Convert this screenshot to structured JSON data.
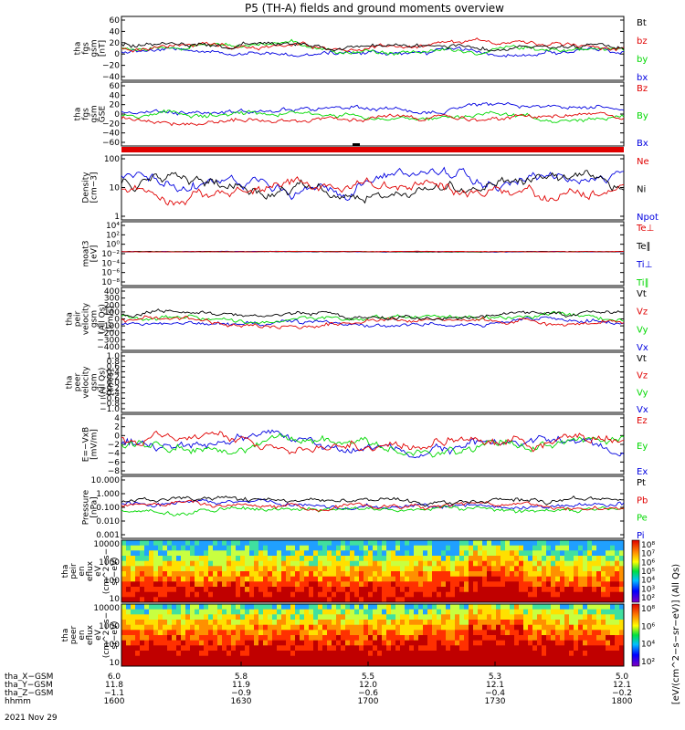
{
  "title": "P5 (TH-A) fields and ground moments overview",
  "colors": {
    "black": "#000000",
    "red": "#e00000",
    "green": "#00d800",
    "blue": "#0000e0",
    "purple": "#9b009b"
  },
  "panels": [
    {
      "id": "fgs-gsm",
      "ylabel": [
        "tha",
        "fgs",
        "gsm",
        "[nT]"
      ],
      "legend": [
        {
          "text": "Bt",
          "color": "#000000"
        },
        {
          "text": "bz",
          "color": "#e00000"
        },
        {
          "text": "by",
          "color": "#00d800"
        },
        {
          "text": "bx",
          "color": "#0000e0"
        }
      ],
      "ytick_labels": [
        "60",
        "40",
        "20",
        "0",
        "−20",
        "−40"
      ]
    },
    {
      "id": "fgs-gse",
      "ylabel": [
        "tha",
        "fgs",
        "gsm",
        "GSE"
      ],
      "legend": [
        {
          "text": "Bz",
          "color": "#e00000"
        },
        {
          "text": "By",
          "color": "#00d800"
        },
        {
          "text": "Bx",
          "color": "#0000e0"
        }
      ],
      "ytick_labels": [
        "60",
        "40",
        "20",
        "0",
        "−20",
        "−40",
        "−60"
      ]
    },
    {
      "id": "density",
      "ylabel": [
        "Density",
        "[cm−3]"
      ],
      "legend": [
        {
          "text": "Ne",
          "color": "#e00000"
        },
        {
          "text": "Ni",
          "color": "#000000"
        },
        {
          "text": "Npot",
          "color": "#0000e0"
        }
      ],
      "ytick_labels": [
        "100",
        "10",
        "1"
      ]
    },
    {
      "id": "temperature",
      "ylabel": [
        "moat3",
        "[eV]"
      ],
      "legend": [
        {
          "text": "Te⊥",
          "color": "#e00000"
        },
        {
          "text": "Te∥",
          "color": "#000000"
        },
        {
          "text": "Ti⊥",
          "color": "#0000e0"
        },
        {
          "text": "Ti∥",
          "color": "#00d800"
        }
      ],
      "ytick_labels": [
        "10⁴",
        "10²",
        "10⁰",
        "10⁻²",
        "10⁻⁴",
        "10⁻⁶",
        "10⁻⁸"
      ]
    },
    {
      "id": "peir-velocity",
      "ylabel": [
        "tha",
        "peir",
        "velocity",
        "gsm",
        "(All Qs)",
        "[km/s]"
      ],
      "legend": [
        {
          "text": "Vt",
          "color": "#000000"
        },
        {
          "text": "Vz",
          "color": "#e00000"
        },
        {
          "text": "Vy",
          "color": "#00d800"
        },
        {
          "text": "Vx",
          "color": "#0000e0"
        }
      ],
      "ytick_labels": [
        "400",
        "300",
        "200",
        "100",
        "0",
        "−100",
        "−200",
        "−300",
        "−400"
      ]
    },
    {
      "id": "peer-velocity",
      "ylabel": [
        "tha",
        "peer",
        "velocity",
        "gsm",
        "(All Qs)",
        "[km/s]"
      ],
      "legend": [
        {
          "text": "Vt",
          "color": "#000000"
        },
        {
          "text": "Vz",
          "color": "#e00000"
        },
        {
          "text": "Vy",
          "color": "#00d800"
        },
        {
          "text": "Vx",
          "color": "#0000e0"
        }
      ],
      "ytick_labels": [
        "1.0",
        "0.8",
        "0.6",
        "0.4",
        "0.2",
        "0.0",
        "−0.2",
        "−0.4",
        "−0.6",
        "−0.8",
        "−1.0"
      ]
    },
    {
      "id": "efield",
      "ylabel": [
        "E=−VxB",
        "[mV/m]"
      ],
      "legend": [
        {
          "text": "Ez",
          "color": "#e00000"
        },
        {
          "text": "Ey",
          "color": "#00d800"
        },
        {
          "text": "Ex",
          "color": "#0000e0"
        }
      ],
      "ytick_labels": [
        "4",
        "2",
        "0",
        "−2",
        "−4",
        "−6",
        "−8"
      ]
    },
    {
      "id": "pressure",
      "ylabel": [
        "Pressure",
        "[nPa]"
      ],
      "legend": [
        {
          "text": "Pt",
          "color": "#000000"
        },
        {
          "text": "Pb",
          "color": "#e00000"
        },
        {
          "text": "Pe",
          "color": "#00d800"
        },
        {
          "text": "Pi",
          "color": "#0000e0"
        }
      ],
      "ytick_labels": [
        "10.000",
        "1.000",
        "0.100",
        "0.010",
        "0.001"
      ]
    },
    {
      "id": "peir-eflux",
      "ylabel": [
        "tha",
        "peir",
        "en",
        "eflux",
        "eV",
        "(cm^2−s−",
        "sr−eV)"
      ],
      "ytick_labels": [
        "10000",
        "1000",
        "100",
        "10"
      ]
    },
    {
      "id": "peer-eflux",
      "ylabel": [
        "tha",
        "peer",
        "en",
        "eflux",
        "eV",
        "(cm^2−s−",
        "sr−eV)"
      ],
      "ytick_labels": [
        "10000",
        "1000",
        "100",
        "10"
      ]
    }
  ],
  "colorbar": {
    "label": "[eV/(cm^2−s−sr−eV)] (All Qs)",
    "upper_ticks": [
      "10⁸",
      "10⁷",
      "10⁶",
      "10⁵",
      "10⁴",
      "10³",
      "10²"
    ],
    "lower_ticks": [
      "10⁸",
      "10⁶",
      "10⁴",
      "10²"
    ]
  },
  "xaxis": {
    "rows": [
      {
        "label": "tha_X−GSM",
        "values": [
          "6.0",
          "5.8",
          "5.5",
          "5.3",
          "5.0"
        ]
      },
      {
        "label": "tha_Y−GSM",
        "values": [
          "11.8",
          "11.9",
          "12.0",
          "12.1",
          "12.1"
        ]
      },
      {
        "label": "tha_Z−GSM",
        "values": [
          "−1.1",
          "−0.9",
          "−0.6",
          "−0.4",
          "−0.2"
        ]
      },
      {
        "label": "hhmm",
        "values": [
          "1600",
          "1630",
          "1700",
          "1730",
          "1800"
        ]
      }
    ],
    "date": "2021 Nov 29"
  },
  "chart_data": {
    "type": "line",
    "title": "P5 (TH-A) fields and ground moments overview",
    "x_range": [
      "1600",
      "1800"
    ],
    "series_note": "",
    "series": [
      {
        "panel": "fgs-gsm",
        "name": "Bt",
        "values": [
          30,
          32,
          28,
          35,
          30,
          26,
          33,
          29,
          31,
          27,
          34,
          30,
          28
        ]
      },
      {
        "panel": "fgs-gsm",
        "name": "bz",
        "values": [
          20,
          22,
          18,
          24,
          19,
          15,
          21,
          18,
          20,
          16,
          23,
          19,
          17
        ]
      },
      {
        "panel": "fgs-gsm",
        "name": "by",
        "values": [
          8,
          10,
          6,
          12,
          9,
          5,
          11,
          7,
          9,
          6,
          12,
          8,
          6
        ]
      },
      {
        "panel": "fgs-gsm",
        "name": "bx",
        "values": [
          -8,
          -10,
          -12,
          -9,
          -14,
          -11,
          -13,
          -10,
          -12,
          -9,
          -15,
          -11,
          -13
        ]
      },
      {
        "panel": "density",
        "name": "Ni",
        "values": [
          20,
          18,
          12,
          22,
          10,
          15,
          8,
          12,
          14,
          10,
          2,
          18,
          20
        ]
      },
      {
        "panel": "pressure",
        "name": "Pt",
        "values": [
          0.6,
          0.7,
          0.55,
          0.8,
          0.6,
          0.5,
          0.7,
          0.65,
          0.6,
          0.55,
          0.75,
          0.6,
          0.65
        ]
      }
    ]
  }
}
